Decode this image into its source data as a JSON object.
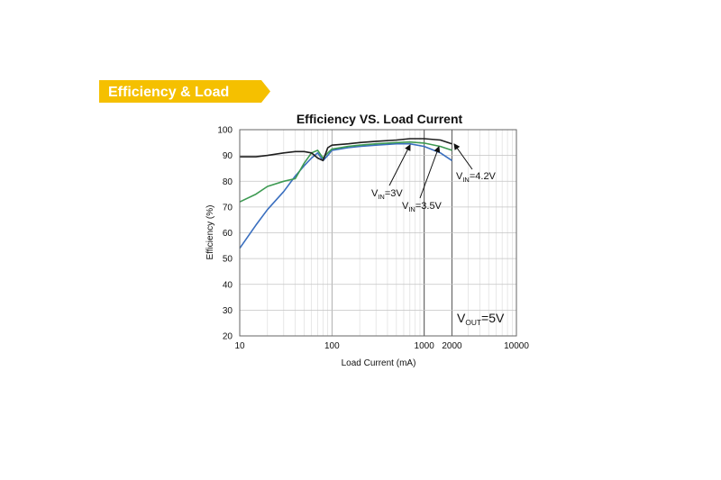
{
  "banner": {
    "label": "Efficiency & Load",
    "color": "#f5c000"
  },
  "chart_data": {
    "type": "line",
    "title": "Efficiency VS. Load Current",
    "xlabel": "Load Current (mA)",
    "ylabel": "Efficiency (%)",
    "xscale": "log",
    "xlim": [
      10,
      10000
    ],
    "ylim": [
      20,
      100
    ],
    "grid": true,
    "x_ticks": [
      10,
      100,
      1000,
      2000,
      10000
    ],
    "x_tick_labels": [
      "10",
      "100",
      "1000",
      "2000",
      "10000"
    ],
    "y_ticks": [
      20,
      30,
      40,
      50,
      60,
      70,
      80,
      90,
      100
    ],
    "series": [
      {
        "color": "#3a6fbf",
        "label_parts": {
          "main": "V",
          "sub": "IN",
          "rest": "=3V"
        },
        "x": [
          10,
          15,
          20,
          30,
          40,
          50,
          60,
          70,
          80,
          90,
          100,
          150,
          200,
          300,
          500,
          700,
          1000,
          1500,
          2000
        ],
        "y": [
          54,
          63,
          69,
          76,
          82,
          86,
          89,
          91,
          88,
          90,
          92,
          93,
          93.5,
          94,
          94.5,
          94.5,
          93.5,
          91,
          88
        ]
      },
      {
        "color": "#3d9a52",
        "label_parts": {
          "main": "V",
          "sub": "IN",
          "rest": "=3.5V"
        },
        "x": [
          10,
          15,
          20,
          30,
          40,
          50,
          60,
          70,
          80,
          90,
          100,
          150,
          200,
          300,
          500,
          700,
          1000,
          1500,
          2000
        ],
        "y": [
          72,
          75,
          78,
          80,
          81,
          87,
          91,
          92,
          89,
          91,
          92.5,
          93.5,
          94,
          94.5,
          95,
          95.2,
          94.8,
          93.5,
          92
        ]
      },
      {
        "color": "#1e1e1e",
        "label_parts": {
          "main": "V",
          "sub": "IN",
          "rest": "=4.2V"
        },
        "x": [
          10,
          15,
          20,
          30,
          40,
          50,
          60,
          70,
          80,
          90,
          100,
          150,
          200,
          300,
          500,
          700,
          1000,
          1500,
          2000
        ],
        "y": [
          89.5,
          89.5,
          90,
          91,
          91.5,
          91.5,
          91,
          89,
          88,
          93,
          94,
          94.5,
          95,
          95.5,
          96,
          96.5,
          96.5,
          96,
          94.5
        ]
      }
    ],
    "annotation": {
      "main": "V",
      "sub": "OUT",
      "rest": "=5V"
    }
  }
}
